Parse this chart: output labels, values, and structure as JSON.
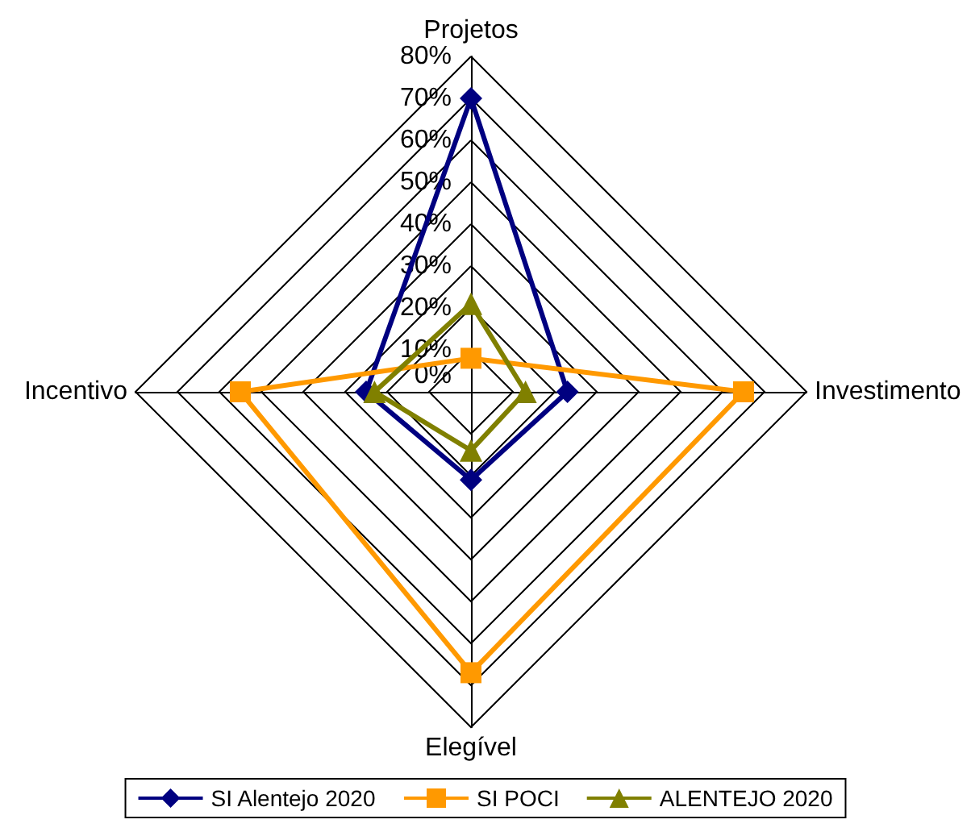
{
  "chart_data": {
    "type": "radar",
    "categories": [
      "Projetos",
      "Investimento",
      "Elegível",
      "Incentivo"
    ],
    "ylim": [
      0,
      80
    ],
    "yticks": [
      {
        "value": 0,
        "label": "0%"
      },
      {
        "value": 10,
        "label": "10%"
      },
      {
        "value": 20,
        "label": "20%"
      },
      {
        "value": 30,
        "label": "30%"
      },
      {
        "value": 40,
        "label": "40%"
      },
      {
        "value": 50,
        "label": "50%"
      },
      {
        "value": 60,
        "label": "60%"
      },
      {
        "value": 70,
        "label": "70%"
      },
      {
        "value": 80,
        "label": "80%"
      }
    ],
    "grid": true,
    "legend": "bottom",
    "line_style": "solid",
    "series": [
      {
        "name": "SI Alentejo 2020",
        "color": "#000080",
        "marker": "diamond",
        "values": [
          70,
          23,
          21,
          25
        ]
      },
      {
        "name": "SI POCI",
        "color": "#ff9900",
        "marker": "square",
        "values": [
          8,
          65,
          67,
          55
        ]
      },
      {
        "name": "ALENTEJO 2020",
        "color": "#808000",
        "marker": "triangle",
        "values": [
          21,
          13,
          14,
          23
        ]
      }
    ]
  }
}
